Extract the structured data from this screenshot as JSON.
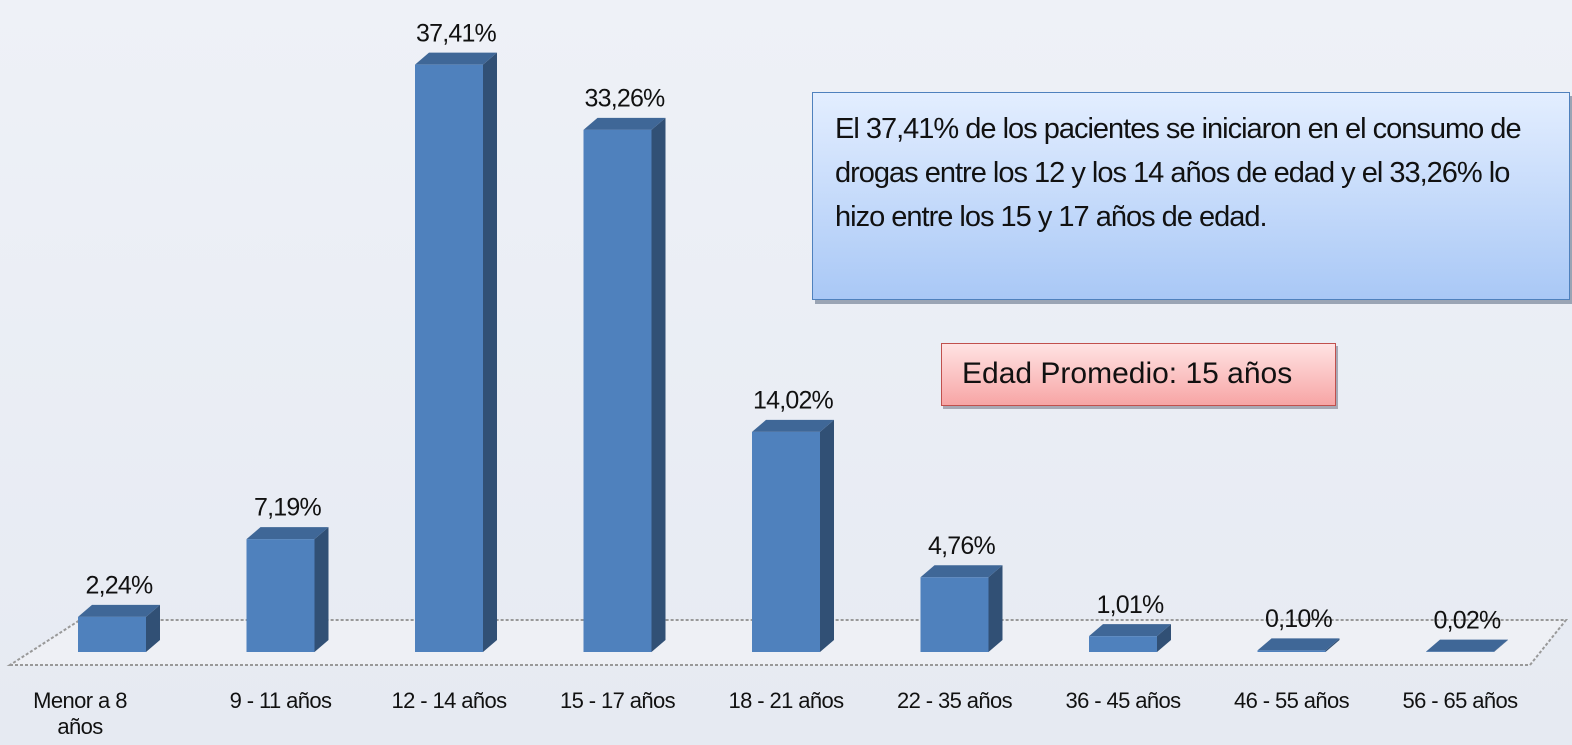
{
  "chart_data": {
    "type": "bar",
    "categories": [
      "Menor a 8 años",
      "9 - 11 años",
      "12 - 14 años",
      "15 - 17 años",
      "18 - 21 años",
      "22 - 35 años",
      "36 - 45 años",
      "46 - 55 años",
      "56 - 65 años"
    ],
    "values": [
      2.24,
      7.19,
      37.41,
      33.26,
      14.02,
      4.76,
      1.01,
      0.1,
      0.02
    ],
    "value_labels": [
      "2,24%",
      "7,19%",
      "37,41%",
      "33,26%",
      "14,02%",
      "4,76%",
      "1,01%",
      "0,10%",
      "0,02%"
    ],
    "color": "#4f81bd",
    "annotations": [
      "El 37,41% de los pacientes se iniciaron en el consumo de drogas entre los 12 y los 14 años de edad y el 33,26% lo hizo entre los 15 y 17 años de edad.",
      "Edad Promedio: 15 años"
    ]
  }
}
